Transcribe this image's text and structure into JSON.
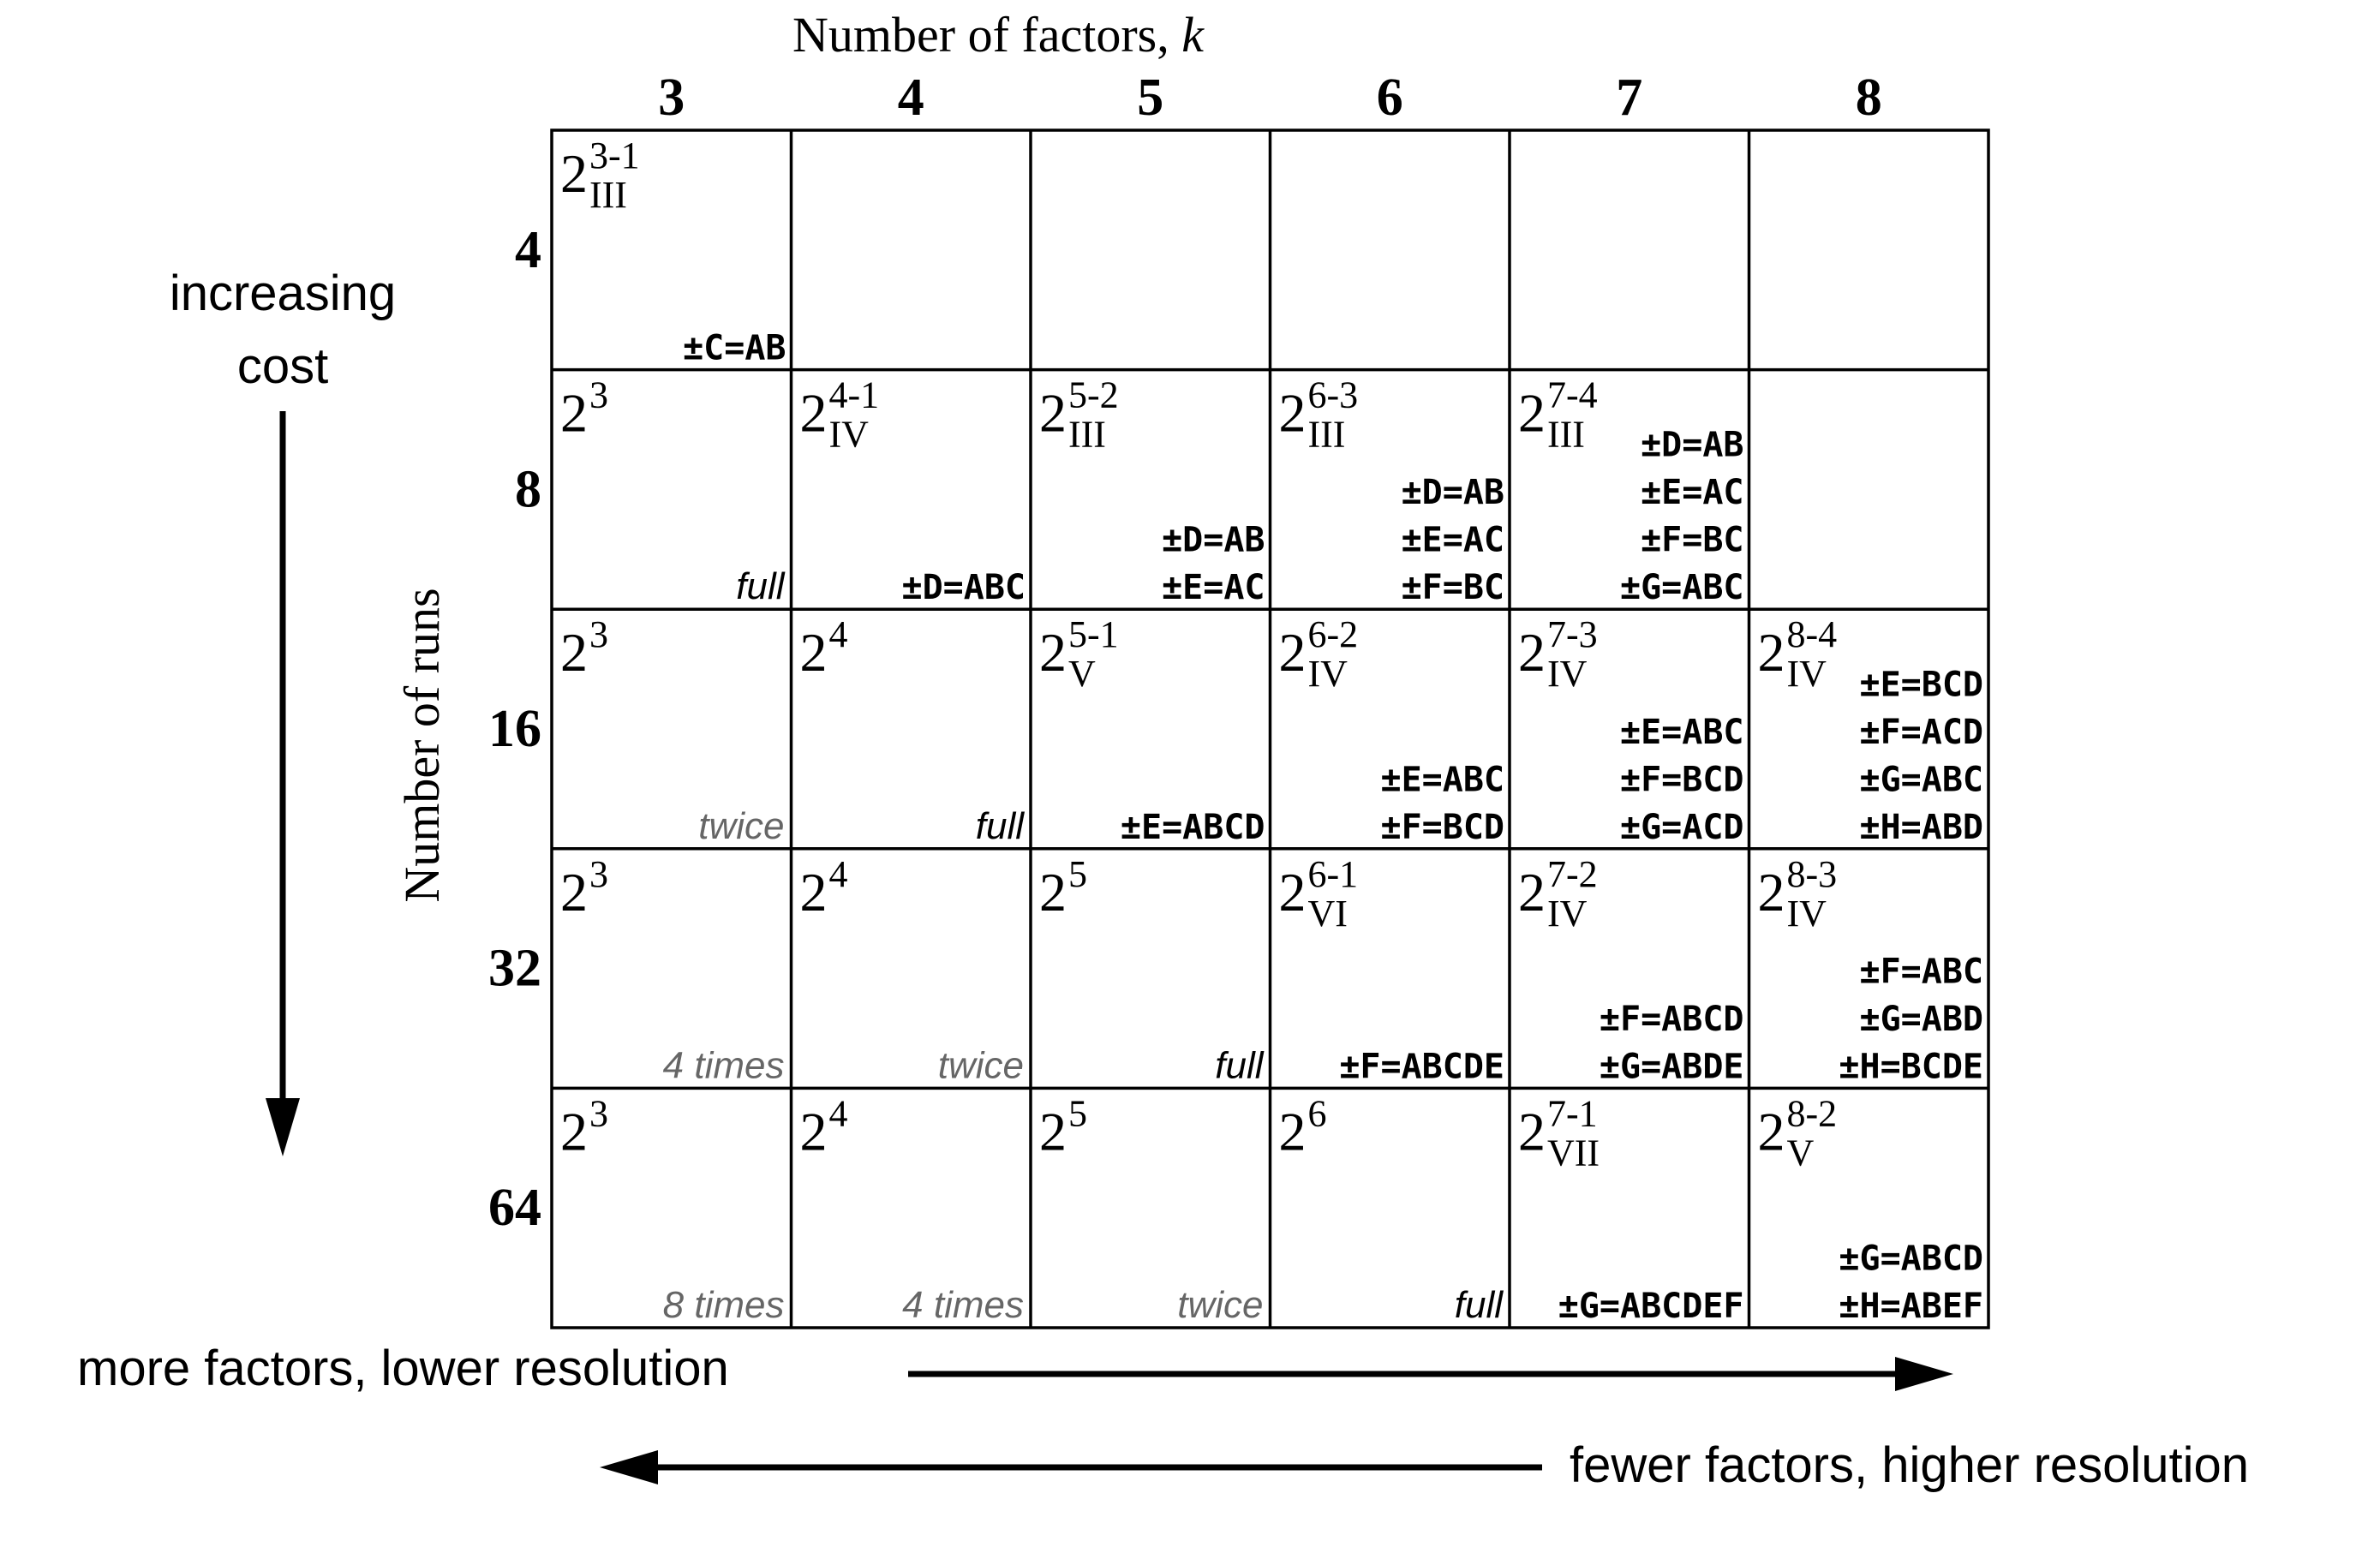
{
  "title": "Number of factors, k",
  "title_prefix": "Number of factors, ",
  "title_var": "k",
  "y_title": "Number of runs",
  "columns": [
    "3",
    "4",
    "5",
    "6",
    "7",
    "8"
  ],
  "rows": [
    "4",
    "8",
    "16",
    "32",
    "64"
  ],
  "side_label_top": "increasing",
  "side_label_bottom": "cost",
  "bottom_label_right_arrow": "more factors, lower resolution",
  "bottom_label_left_arrow": "fewer factors, higher resolution",
  "cells": [
    [
      {
        "base": "2",
        "sup": "3-1",
        "sub": "III",
        "gens": [
          "±C=AB"
        ],
        "note": "",
        "note_gray": false
      },
      null,
      null,
      null,
      null,
      null
    ],
    [
      {
        "base": "2",
        "sup": "3",
        "sub": "",
        "gens": [],
        "note": "full",
        "note_gray": false
      },
      {
        "base": "2",
        "sup": "4-1",
        "sub": "IV",
        "gens": [
          "±D=ABC"
        ],
        "note": "",
        "note_gray": false
      },
      {
        "base": "2",
        "sup": "5-2",
        "sub": "III",
        "gens": [
          "±D=AB",
          "±E=AC"
        ],
        "note": "",
        "note_gray": false
      },
      {
        "base": "2",
        "sup": "6-3",
        "sub": "III",
        "gens": [
          "±D=AB",
          "±E=AC",
          "±F=BC"
        ],
        "note": "",
        "note_gray": false
      },
      {
        "base": "2",
        "sup": "7-4",
        "sub": "III",
        "gens": [
          "±D=AB",
          "±E=AC",
          "±F=BC",
          "±G=ABC"
        ],
        "note": "",
        "note_gray": false
      },
      null
    ],
    [
      {
        "base": "2",
        "sup": "3",
        "sub": "",
        "gens": [],
        "note": "twice",
        "note_gray": true
      },
      {
        "base": "2",
        "sup": "4",
        "sub": "",
        "gens": [],
        "note": "full",
        "note_gray": false
      },
      {
        "base": "2",
        "sup": "5-1",
        "sub": "V",
        "gens": [
          "±E=ABCD"
        ],
        "note": "",
        "note_gray": false
      },
      {
        "base": "2",
        "sup": "6-2",
        "sub": "IV",
        "gens": [
          "±E=ABC",
          "±F=BCD"
        ],
        "note": "",
        "note_gray": false
      },
      {
        "base": "2",
        "sup": "7-3",
        "sub": "IV",
        "gens": [
          "±E=ABC",
          "±F=BCD",
          "±G=ACD"
        ],
        "note": "",
        "note_gray": false
      },
      {
        "base": "2",
        "sup": "8-4",
        "sub": "IV",
        "gens": [
          "±E=BCD",
          "±F=ACD",
          "±G=ABC",
          "±H=ABD"
        ],
        "note": "",
        "note_gray": false
      }
    ],
    [
      {
        "base": "2",
        "sup": "3",
        "sub": "",
        "gens": [],
        "note": "4 times",
        "note_gray": true
      },
      {
        "base": "2",
        "sup": "4",
        "sub": "",
        "gens": [],
        "note": "twice",
        "note_gray": true
      },
      {
        "base": "2",
        "sup": "5",
        "sub": "",
        "gens": [],
        "note": "full",
        "note_gray": false
      },
      {
        "base": "2",
        "sup": "6-1",
        "sub": "VI",
        "gens": [
          "±F=ABCDE"
        ],
        "note": "",
        "note_gray": false
      },
      {
        "base": "2",
        "sup": "7-2",
        "sub": "IV",
        "gens": [
          "±F=ABCD",
          "±G=ABDE"
        ],
        "note": "",
        "note_gray": false
      },
      {
        "base": "2",
        "sup": "8-3",
        "sub": "IV",
        "gens": [
          "±F=ABC",
          "±G=ABD",
          "±H=BCDE"
        ],
        "note": "",
        "note_gray": false
      }
    ],
    [
      {
        "base": "2",
        "sup": "3",
        "sub": "",
        "gens": [],
        "note": "8 times",
        "note_gray": true
      },
      {
        "base": "2",
        "sup": "4",
        "sub": "",
        "gens": [],
        "note": "4 times",
        "note_gray": true
      },
      {
        "base": "2",
        "sup": "5",
        "sub": "",
        "gens": [],
        "note": "twice",
        "note_gray": true
      },
      {
        "base": "2",
        "sup": "6",
        "sub": "",
        "gens": [],
        "note": "full",
        "note_gray": false
      },
      {
        "base": "2",
        "sup": "7-1",
        "sub": "VII",
        "gens": [
          "±G=ABCDEF"
        ],
        "note": "",
        "note_gray": false
      },
      {
        "base": "2",
        "sup": "8-2",
        "sub": "V",
        "gens": [
          "±G=ABCD",
          "±H=ABEF"
        ],
        "note": "",
        "note_gray": false
      }
    ]
  ],
  "colors": {
    "line": "#000000",
    "text": "#000000",
    "gray_note": "#666666"
  }
}
